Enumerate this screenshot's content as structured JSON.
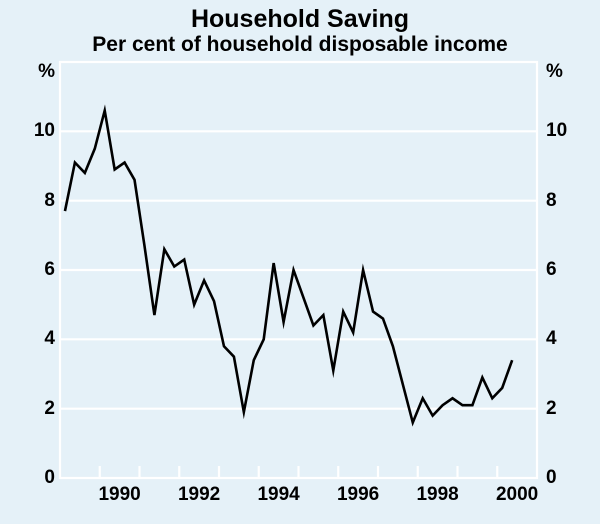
{
  "page": {
    "background": "#e5f1f8"
  },
  "header": {
    "title": "Household Saving",
    "subtitle": "Per cent of household disposable income"
  },
  "axes": {
    "left_unit": "%",
    "right_unit": "%"
  },
  "chart_data": {
    "type": "line",
    "title": "Household Saving",
    "subtitle": "Per cent of household disposable income",
    "unit": "%",
    "frequency": "quarterly",
    "xlim": [
      1989,
      2001
    ],
    "ylim": [
      0,
      12
    ],
    "y_ticks": [
      0,
      2,
      4,
      6,
      8,
      10
    ],
    "y_tick_sides": "both",
    "x_tick_marks_years": [
      1990,
      1991,
      1992,
      1993,
      1994,
      1995,
      1996,
      1997,
      1998,
      1999,
      2000
    ],
    "x_tick_labels": [
      "1990",
      "1992",
      "1994",
      "1996",
      "1998",
      "2000"
    ],
    "x_tick_label_years": [
      1990,
      1992,
      1994,
      1996,
      1998,
      2000
    ],
    "grid": "horizontal",
    "legend": "none",
    "series": [
      {
        "x_start": 1989.125,
        "x_step": 0.25,
        "values": [
          7.7,
          9.1,
          8.8,
          9.5,
          10.6,
          8.9,
          9.1,
          8.6,
          6.7,
          4.7,
          6.6,
          6.1,
          6.3,
          5.0,
          5.7,
          5.1,
          3.8,
          3.5,
          1.9,
          3.4,
          4.0,
          6.2,
          4.5,
          6.0,
          5.2,
          4.4,
          4.7,
          3.1,
          4.8,
          4.2,
          6.0,
          4.8,
          4.6,
          3.8,
          2.7,
          1.6,
          2.3,
          1.8,
          2.1,
          2.3,
          2.1,
          2.1,
          2.9,
          2.3,
          2.6,
          3.4
        ]
      }
    ],
    "colors": {
      "background": "#e5f1f8",
      "line": "#000000",
      "grid": "#ffffff",
      "frame": "#ffffff",
      "text": "#000000"
    }
  }
}
